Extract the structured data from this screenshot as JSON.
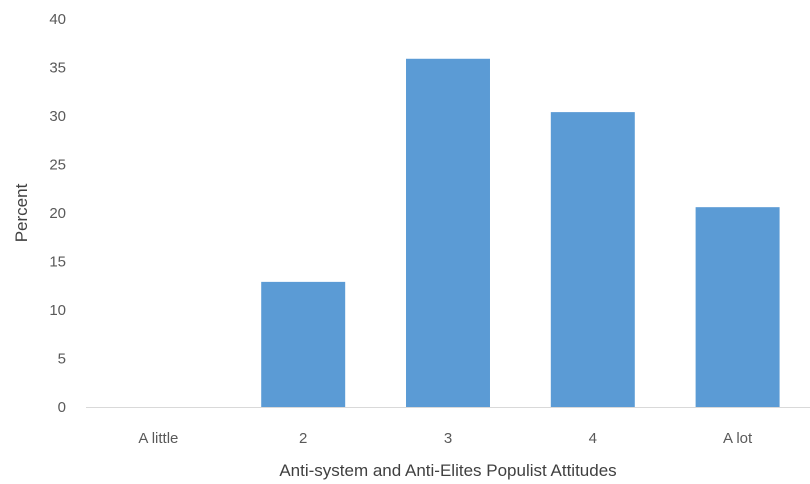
{
  "chart_data": {
    "type": "bar",
    "title": "",
    "xlabel": "Anti-system and Anti-Elites Populist Attitudes",
    "ylabel": "Percent",
    "categories": [
      "A little",
      "2",
      "3",
      "4",
      "A lot"
    ],
    "values": [
      0,
      12.9,
      35.9,
      30.4,
      20.6
    ],
    "ylim": [
      0,
      40
    ],
    "yticks": [
      0,
      5,
      10,
      15,
      20,
      25,
      30,
      35,
      40
    ],
    "grid": false,
    "legend": "none",
    "bar_color": "#5b9bd5",
    "axis_color": "#d9d9d9"
  }
}
